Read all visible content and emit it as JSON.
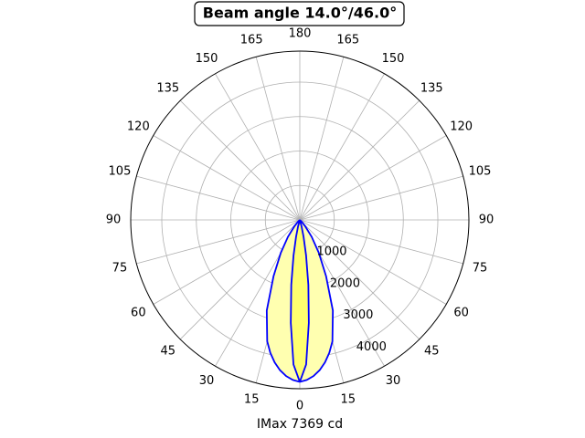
{
  "chart_data": {
    "type": "polar",
    "title": "Beam angle 14.0°/46.0°",
    "xlabel": "IMax 7369 cd",
    "angles": [
      0,
      2.5,
      5,
      7.5,
      10,
      12.5,
      15,
      20,
      25,
      30,
      35,
      40,
      45,
      50,
      60,
      90
    ],
    "angle_ticks": [
      0,
      15,
      30,
      45,
      60,
      75,
      90,
      105,
      120,
      135,
      150,
      165,
      180
    ],
    "rlim": [
      0,
      4900
    ],
    "rticks": [
      1000,
      2000,
      3000,
      4000
    ],
    "grid": true,
    "series": [
      {
        "color": "#0000ff",
        "fill": "#ffffb0",
        "values": [
          4700,
          4650,
          4550,
          4400,
          4200,
          3950,
          3650,
          2800,
          1800,
          1100,
          600,
          250,
          80,
          0,
          0,
          0
        ]
      },
      {
        "color": "#0000ff",
        "fill": "#ffff70",
        "values": [
          4700,
          4200,
          3000,
          1900,
          1050,
          500,
          200,
          0,
          0,
          0,
          0,
          0,
          0,
          0,
          0,
          0
        ]
      }
    ]
  }
}
